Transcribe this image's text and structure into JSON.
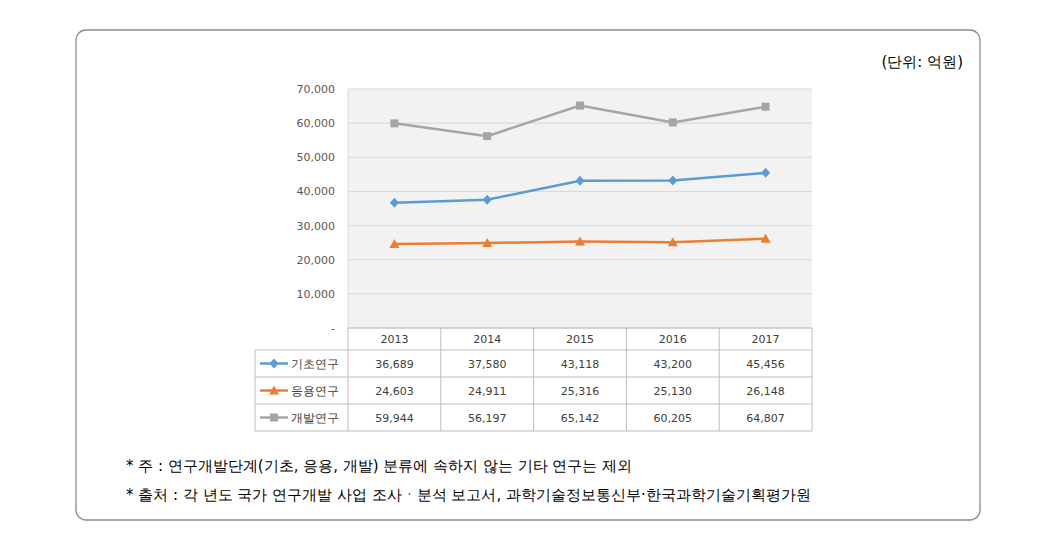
{
  "chart_data": {
    "type": "line",
    "unit": "(단위: 억원)",
    "categories": [
      "2013",
      "2014",
      "2015",
      "2016",
      "2017"
    ],
    "series": [
      {
        "name": "기초연구",
        "color": "#5b9bd5",
        "marker": "diamond",
        "values": [
          36689,
          37580,
          43118,
          43200,
          45456
        ],
        "value_labels": [
          "36,689",
          "37,580",
          "43,118",
          "43,200",
          "45,456"
        ]
      },
      {
        "name": "응용연구",
        "color": "#ed7d31",
        "marker": "triangle",
        "values": [
          24603,
          24911,
          25316,
          25130,
          26148
        ],
        "value_labels": [
          "24,603",
          "24,911",
          "25,316",
          "25,130",
          "26,148"
        ]
      },
      {
        "name": "개발연구",
        "color": "#a5a5a5",
        "marker": "square",
        "values": [
          59944,
          56197,
          65142,
          60205,
          64807
        ],
        "value_labels": [
          "59,944",
          "56,197",
          "65,142",
          "60,205",
          "64,807"
        ]
      }
    ],
    "ylim": [
      0,
      70000
    ],
    "yticks": [
      {
        "value": 0,
        "label": "-"
      },
      {
        "value": 10000,
        "label": "10,000"
      },
      {
        "value": 20000,
        "label": "20,000"
      },
      {
        "value": 30000,
        "label": "30,000"
      },
      {
        "value": 40000,
        "label": "40,000"
      },
      {
        "value": 50000,
        "label": "50,000"
      },
      {
        "value": 60000,
        "label": "60,000"
      },
      {
        "value": 70000,
        "label": "70,000"
      }
    ],
    "grid": true,
    "notes": [
      "* 주 : 연구개발단계(기초, 응용, 개발) 분류에 속하지 않는 기타 연구는 제외",
      "* 출처 : 각 년도 국가 연구개발 사업 조사ㆍ분석 보고서, 과학기술정보통신부·한국과학기술기획평가원"
    ]
  }
}
